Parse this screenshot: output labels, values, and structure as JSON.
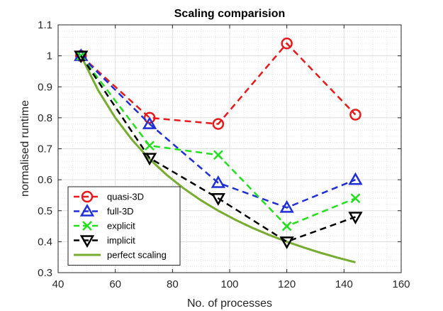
{
  "chart_data": {
    "type": "line",
    "title": "Scaling comparision",
    "xlabel": "No. of processes",
    "ylabel": "normalised runtime",
    "xlim": [
      40,
      160
    ],
    "ylim": [
      0.3,
      1.1
    ],
    "xticks": [
      40,
      60,
      80,
      100,
      120,
      140,
      160
    ],
    "yticks": [
      0.3,
      0.4,
      0.5,
      0.6,
      0.7,
      0.8,
      0.9,
      1,
      1.1
    ],
    "grid": true,
    "minor_grid": true,
    "legend_location": "bottom-left",
    "series": [
      {
        "name": "quasi-3D",
        "color": "#e8191b",
        "style": "dashed",
        "marker": "circle",
        "x": [
          48,
          72,
          96,
          120,
          144
        ],
        "y": [
          1.0,
          0.8,
          0.78,
          1.04,
          0.81
        ]
      },
      {
        "name": "full-3D",
        "color": "#1f2fd6",
        "style": "dashed",
        "marker": "triangle-up",
        "x": [
          48,
          72,
          96,
          120,
          144
        ],
        "y": [
          1.0,
          0.78,
          0.59,
          0.51,
          0.6
        ]
      },
      {
        "name": "explicit",
        "color": "#22e01c",
        "style": "dashed",
        "marker": "x",
        "x": [
          48,
          72,
          96,
          120,
          144
        ],
        "y": [
          1.0,
          0.71,
          0.68,
          0.45,
          0.54
        ]
      },
      {
        "name": "implicit",
        "color": "#000000",
        "style": "dashed",
        "marker": "triangle-down",
        "x": [
          48,
          72,
          96,
          120,
          144
        ],
        "y": [
          1.0,
          0.67,
          0.54,
          0.4,
          0.48
        ]
      },
      {
        "name": "perfect scaling",
        "color": "#77ac30",
        "style": "solid",
        "marker": "none",
        "x": [
          48,
          54,
          60,
          66,
          72,
          78,
          84,
          90,
          96,
          102,
          108,
          114,
          120,
          126,
          132,
          138,
          144
        ],
        "y": [
          1.0,
          0.8889,
          0.8,
          0.7273,
          0.6667,
          0.6154,
          0.5714,
          0.5333,
          0.5,
          0.4706,
          0.4444,
          0.4211,
          0.4,
          0.381,
          0.3636,
          0.3478,
          0.3333
        ]
      }
    ]
  }
}
